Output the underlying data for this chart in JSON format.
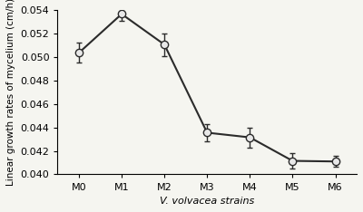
{
  "x_labels": [
    "M0",
    "M1",
    "M2",
    "M3",
    "M4",
    "M5",
    "M6"
  ],
  "y_values": [
    0.05035,
    0.05365,
    0.05105,
    0.04355,
    0.04315,
    0.04115,
    0.0411
  ],
  "y_errors": [
    0.00085,
    0.00055,
    0.00095,
    0.00075,
    0.00085,
    0.00065,
    0.00045
  ],
  "ylim": [
    0.04,
    0.054
  ],
  "yticks": [
    0.04,
    0.042,
    0.044,
    0.046,
    0.048,
    0.05,
    0.052,
    0.054
  ],
  "xlabel": "V. volvacea strains",
  "ylabel": "Linear growth rates of mycelium (cm/h)",
  "line_color": "#2b2b2b",
  "marker_facecolor": "#e8e8e8",
  "marker_edgecolor": "#2b2b2b",
  "marker_size": 6,
  "line_width": 1.5,
  "background_color": "#f5f5f0",
  "xlabel_style": "italic"
}
